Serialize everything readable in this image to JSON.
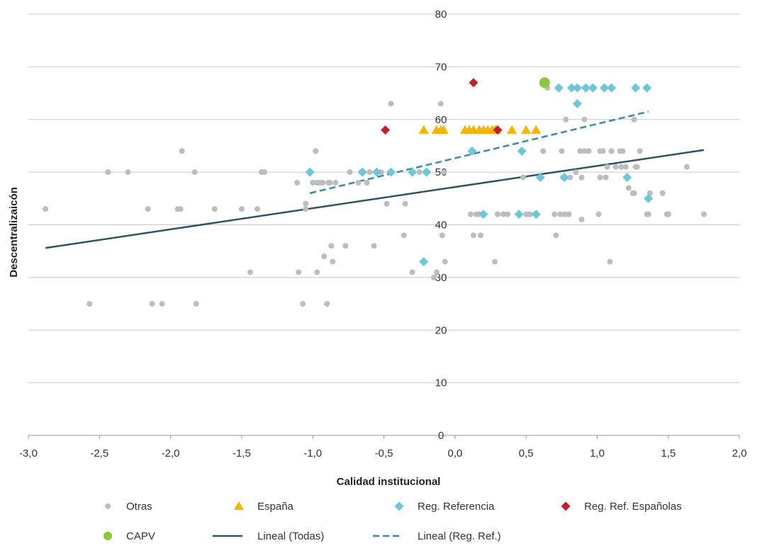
{
  "chart_data": {
    "type": "scatter",
    "xlabel": "Calidad institucional",
    "ylabel": "Descentralizaicón",
    "xlim": [
      -3.0,
      2.0
    ],
    "ylim": [
      0,
      80
    ],
    "x_ticks": [
      "-3,0",
      "-2,5",
      "-2,0",
      "-1,5",
      "-1,0",
      "-0,5",
      "0,0",
      "0,5",
      "1,0",
      "1,5",
      "2,0"
    ],
    "y_ticks": [
      "0",
      "10",
      "20",
      "30",
      "40",
      "50",
      "60",
      "70",
      "80"
    ],
    "grid": "horizontal",
    "legend_position": "bottom",
    "series": [
      {
        "name": "Otras",
        "marker": "circle",
        "color": "#BDBDBD",
        "points": [
          [
            -2.88,
            43
          ],
          [
            -2.57,
            25
          ],
          [
            -2.44,
            50
          ],
          [
            -2.3,
            50
          ],
          [
            -2.16,
            43
          ],
          [
            -2.13,
            25
          ],
          [
            -2.06,
            25
          ],
          [
            -1.95,
            43
          ],
          [
            -1.93,
            43
          ],
          [
            -1.92,
            54
          ],
          [
            -1.83,
            50
          ],
          [
            -1.82,
            25
          ],
          [
            -1.69,
            43
          ],
          [
            -1.5,
            43
          ],
          [
            -1.44,
            31
          ],
          [
            -1.39,
            43
          ],
          [
            -1.36,
            50
          ],
          [
            -1.34,
            50
          ],
          [
            -1.11,
            48
          ],
          [
            -1.1,
            31
          ],
          [
            -1.07,
            25
          ],
          [
            -1.05,
            44
          ],
          [
            -1.05,
            43
          ],
          [
            -1.0,
            48
          ],
          [
            -0.98,
            54
          ],
          [
            -0.97,
            48
          ],
          [
            -0.97,
            31
          ],
          [
            -0.95,
            48
          ],
          [
            -0.93,
            48
          ],
          [
            -0.92,
            34
          ],
          [
            -0.9,
            25
          ],
          [
            -0.89,
            48
          ],
          [
            -0.88,
            48
          ],
          [
            -0.87,
            36
          ],
          [
            -0.86,
            33
          ],
          [
            -0.84,
            48
          ],
          [
            -0.77,
            36
          ],
          [
            -0.74,
            50
          ],
          [
            -0.68,
            48
          ],
          [
            -0.66,
            50
          ],
          [
            -0.62,
            48
          ],
          [
            -0.6,
            50
          ],
          [
            -0.57,
            36
          ],
          [
            -0.52,
            50
          ],
          [
            -0.48,
            44
          ],
          [
            -0.45,
            63
          ],
          [
            -0.45,
            50
          ],
          [
            -0.36,
            38
          ],
          [
            -0.35,
            44
          ],
          [
            -0.3,
            31
          ],
          [
            -0.25,
            50
          ],
          [
            -0.15,
            30
          ],
          [
            -0.13,
            31
          ],
          [
            -0.1,
            63
          ],
          [
            -0.09,
            38
          ],
          [
            -0.08,
            50
          ],
          [
            -0.07,
            33
          ],
          [
            0.11,
            42
          ],
          [
            0.13,
            38
          ],
          [
            0.15,
            42
          ],
          [
            0.17,
            42
          ],
          [
            0.18,
            38
          ],
          [
            0.2,
            42
          ],
          [
            0.28,
            33
          ],
          [
            0.3,
            42
          ],
          [
            0.34,
            42
          ],
          [
            0.37,
            42
          ],
          [
            0.45,
            42
          ],
          [
            0.48,
            49
          ],
          [
            0.5,
            42
          ],
          [
            0.52,
            42
          ],
          [
            0.53,
            42
          ],
          [
            0.62,
            54
          ],
          [
            0.65,
            66
          ],
          [
            0.7,
            42
          ],
          [
            0.71,
            38
          ],
          [
            0.74,
            42
          ],
          [
            0.75,
            54
          ],
          [
            0.76,
            49
          ],
          [
            0.77,
            42
          ],
          [
            0.78,
            60
          ],
          [
            0.8,
            42
          ],
          [
            0.81,
            49
          ],
          [
            0.85,
            50
          ],
          [
            0.88,
            54
          ],
          [
            0.89,
            41
          ],
          [
            0.89,
            49
          ],
          [
            0.91,
            54
          ],
          [
            0.91,
            60
          ],
          [
            0.94,
            54
          ],
          [
            1.01,
            42
          ],
          [
            1.02,
            54
          ],
          [
            1.02,
            49
          ],
          [
            1.04,
            54
          ],
          [
            1.06,
            49
          ],
          [
            1.07,
            51
          ],
          [
            1.09,
            33
          ],
          [
            1.1,
            54
          ],
          [
            1.13,
            51
          ],
          [
            1.16,
            54
          ],
          [
            1.17,
            51
          ],
          [
            1.18,
            54
          ],
          [
            1.2,
            51
          ],
          [
            1.22,
            47
          ],
          [
            1.25,
            46
          ],
          [
            1.26,
            60
          ],
          [
            1.26,
            46
          ],
          [
            1.27,
            51
          ],
          [
            1.28,
            51
          ],
          [
            1.3,
            54
          ],
          [
            1.35,
            42
          ],
          [
            1.36,
            42
          ],
          [
            1.37,
            46
          ],
          [
            1.46,
            46
          ],
          [
            1.49,
            42
          ],
          [
            1.5,
            42
          ],
          [
            1.63,
            51
          ],
          [
            1.75,
            42
          ]
        ]
      },
      {
        "name": "España",
        "marker": "triangle",
        "color": "#F5B400",
        "points": [
          [
            -0.22,
            58
          ],
          [
            -0.13,
            58
          ],
          [
            -0.1,
            58
          ],
          [
            -0.08,
            58
          ],
          [
            0.07,
            58
          ],
          [
            0.1,
            58
          ],
          [
            0.13,
            58
          ],
          [
            0.17,
            58
          ],
          [
            0.2,
            58
          ],
          [
            0.23,
            58
          ],
          [
            0.26,
            58
          ],
          [
            0.28,
            58
          ],
          [
            0.29,
            58
          ],
          [
            0.4,
            58
          ],
          [
            0.5,
            58
          ],
          [
            0.57,
            58
          ]
        ]
      },
      {
        "name": "Reg. Referencia",
        "marker": "diamond",
        "color": "#6EC6D8",
        "points": [
          [
            -1.02,
            50
          ],
          [
            -0.65,
            50
          ],
          [
            -0.55,
            50
          ],
          [
            -0.45,
            50
          ],
          [
            -0.3,
            50
          ],
          [
            -0.22,
            33
          ],
          [
            -0.2,
            50
          ],
          [
            0.12,
            54
          ],
          [
            0.2,
            42
          ],
          [
            0.45,
            42
          ],
          [
            0.47,
            54
          ],
          [
            0.57,
            42
          ],
          [
            0.6,
            49
          ],
          [
            0.73,
            66
          ],
          [
            0.77,
            49
          ],
          [
            0.82,
            66
          ],
          [
            0.86,
            66
          ],
          [
            0.86,
            63
          ],
          [
            0.92,
            66
          ],
          [
            0.97,
            66
          ],
          [
            1.05,
            66
          ],
          [
            1.1,
            66
          ],
          [
            1.21,
            49
          ],
          [
            1.27,
            66
          ],
          [
            1.35,
            66
          ],
          [
            1.36,
            45
          ]
        ]
      },
      {
        "name": "Reg. Ref. Españolas",
        "marker": "diamond",
        "color": "#C0202A",
        "points": [
          [
            -0.49,
            58
          ],
          [
            0.13,
            67
          ],
          [
            0.3,
            58
          ]
        ]
      },
      {
        "name": "CAPV",
        "marker": "circle",
        "color": "#8DC63F",
        "points": [
          [
            0.63,
            67
          ]
        ]
      },
      {
        "name": "Lineal (Todas)",
        "marker": "line",
        "color": "#2F5560",
        "points": [
          [
            -2.88,
            35.6
          ],
          [
            1.75,
            54.2
          ]
        ]
      },
      {
        "name": "Lineal (Reg. Ref.)",
        "marker": "dashed-line",
        "color": "#3A8AA0",
        "points": [
          [
            -1.02,
            46
          ],
          [
            1.36,
            61.5
          ]
        ]
      }
    ]
  }
}
